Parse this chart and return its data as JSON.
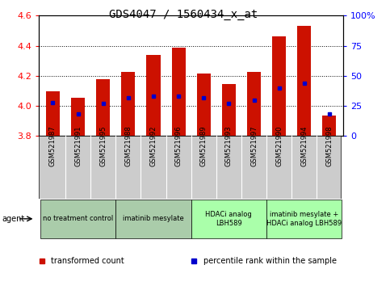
{
  "title": "GDS4047 / 1560434_x_at",
  "samples": [
    "GSM521987",
    "GSM521991",
    "GSM521995",
    "GSM521988",
    "GSM521992",
    "GSM521996",
    "GSM521989",
    "GSM521993",
    "GSM521997",
    "GSM521990",
    "GSM521994",
    "GSM521998"
  ],
  "transformed_count": [
    4.095,
    4.055,
    4.175,
    4.225,
    4.34,
    4.385,
    4.215,
    4.145,
    4.225,
    4.465,
    4.535,
    3.935
  ],
  "percentile_rank": [
    28,
    18,
    27,
    32,
    33,
    33,
    32,
    27,
    30,
    40,
    44,
    18
  ],
  "bar_bottom": 3.8,
  "ylim_left": [
    3.8,
    4.6
  ],
  "ylim_right": [
    0,
    100
  ],
  "yticks_left": [
    3.8,
    4.0,
    4.2,
    4.4,
    4.6
  ],
  "yticks_right": [
    0,
    25,
    50,
    75,
    100
  ],
  "bar_color": "#cc1100",
  "dot_color": "#0000cc",
  "agent_groups": [
    {
      "label": "no treatment control",
      "start": 0,
      "end": 3
    },
    {
      "label": "imatinib mesylate",
      "start": 3,
      "end": 6
    },
    {
      "label": "HDACi analog\nLBH589",
      "start": 6,
      "end": 9
    },
    {
      "label": "imatinib mesylate +\nHDACi analog LBH589",
      "start": 9,
      "end": 12
    }
  ],
  "group_colors": [
    "#aaccaa",
    "#aaccaa",
    "#aaffaa",
    "#aaffaa"
  ],
  "sample_box_color": "#cccccc",
  "legend_items": [
    {
      "label": "transformed count",
      "color": "#cc1100"
    },
    {
      "label": "percentile rank within the sample",
      "color": "#0000cc"
    }
  ],
  "figsize": [
    4.83,
    3.54
  ],
  "dpi": 100
}
